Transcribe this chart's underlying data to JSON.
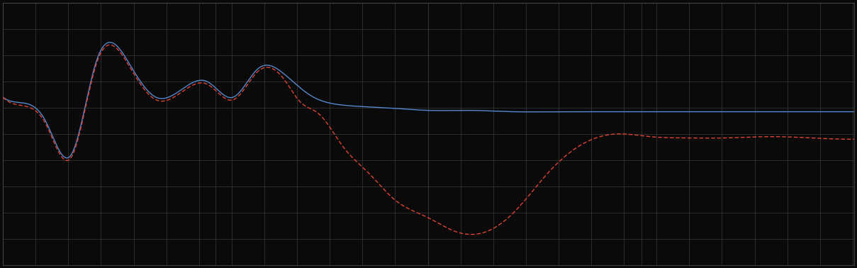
{
  "background_color": "#0a0a0a",
  "plot_background_color": "#0a0a0a",
  "grid_color": "#3a3a3a",
  "line1_color": "#5588cc",
  "line2_color": "#dd4433",
  "line1_style": "solid",
  "line2_style": "dashed",
  "line_width": 1.0,
  "figsize": [
    12.09,
    3.78
  ],
  "dpi": 100,
  "xlim": [
    0,
    100
  ],
  "ylim": [
    0,
    10
  ],
  "blue_x": [
    0,
    2,
    5,
    8,
    11,
    15,
    18,
    21,
    24,
    27,
    30,
    33,
    36,
    40,
    45,
    50,
    55,
    60,
    65,
    70,
    75,
    80,
    85,
    90,
    95,
    100
  ],
  "blue_y": [
    6.4,
    6.2,
    5.5,
    4.2,
    7.8,
    7.6,
    6.4,
    6.7,
    7.0,
    6.4,
    7.5,
    7.3,
    6.5,
    6.1,
    6.0,
    5.9,
    5.9,
    5.85,
    5.85,
    5.85,
    5.85,
    5.85,
    5.85,
    5.85,
    5.85,
    5.85
  ],
  "red_x": [
    0,
    2,
    5,
    8,
    11,
    15,
    18,
    21,
    24,
    27,
    30,
    33,
    35,
    37,
    40,
    43,
    46,
    50,
    53,
    56,
    60,
    64,
    68,
    72,
    76,
    80,
    85,
    90,
    95,
    100
  ],
  "red_y": [
    6.4,
    6.1,
    5.4,
    4.1,
    7.7,
    7.5,
    6.3,
    6.6,
    6.9,
    6.3,
    7.4,
    7.1,
    6.2,
    5.8,
    4.5,
    3.5,
    2.5,
    1.8,
    1.3,
    1.2,
    2.0,
    3.5,
    4.6,
    5.0,
    4.9,
    4.85,
    4.85,
    4.9,
    4.85,
    4.8
  ]
}
